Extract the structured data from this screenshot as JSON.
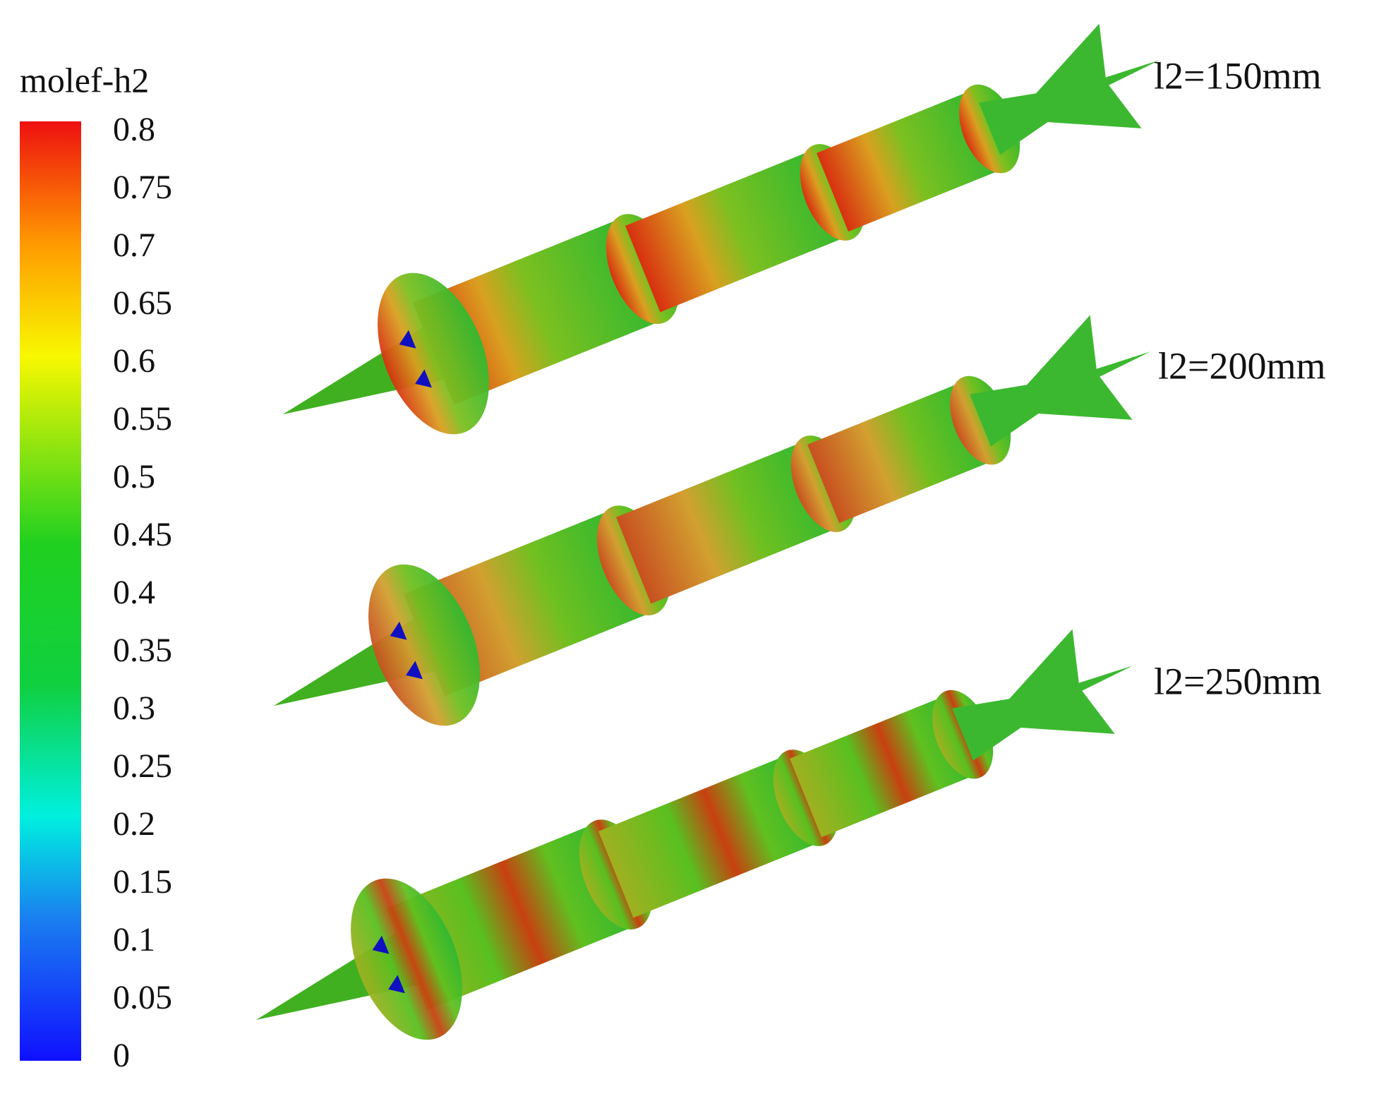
{
  "colorbar": {
    "title": "molef-h2",
    "range": [
      0,
      0.8
    ],
    "ticks": [
      0.8,
      0.75,
      0.7,
      0.65,
      0.6,
      0.55,
      0.5,
      0.45,
      0.4,
      0.35,
      0.3,
      0.25,
      0.2,
      0.15,
      0.1,
      0.05,
      0
    ]
  },
  "cases": [
    {
      "label": "l2=150mm"
    },
    {
      "label": "l2=200mm"
    },
    {
      "label": "l2=250mm"
    }
  ]
}
